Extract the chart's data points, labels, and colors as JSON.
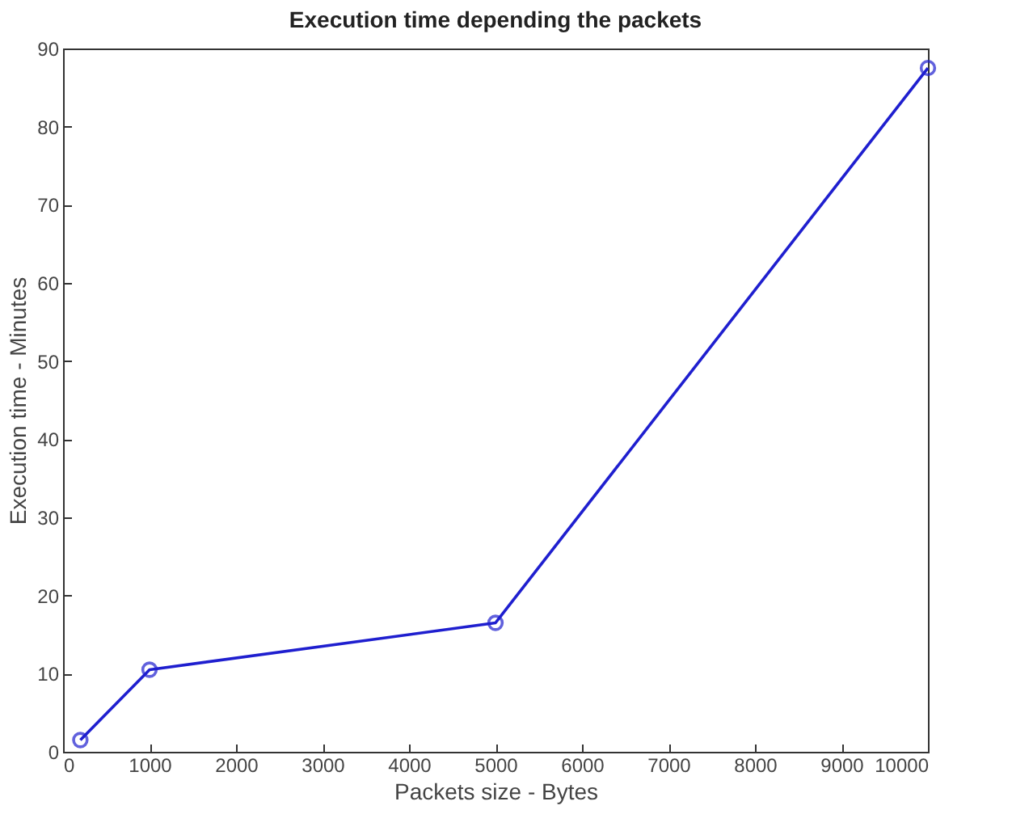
{
  "chart_data": {
    "type": "line",
    "title": "Execution time depending the packets",
    "xlabel": "Packets size - Bytes",
    "ylabel": "Execution time - Minutes",
    "x": [
      200,
      1000,
      5000,
      10000
    ],
    "series": [
      {
        "color": "#1f1fcf",
        "values": [
          1.5,
          10.5,
          16.5,
          87.5
        ]
      }
    ],
    "xlim": [
      0,
      10000
    ],
    "xticks": [
      0,
      1000,
      2000,
      3000,
      4000,
      5000,
      6000,
      7000,
      8000,
      9000,
      10000
    ],
    "ylim": [
      0,
      90
    ],
    "yticks": [
      0,
      10,
      20,
      30,
      40,
      50,
      60,
      70,
      80,
      90
    ],
    "grid": false,
    "legend": false,
    "marker": "circle",
    "line_style": "solid"
  }
}
